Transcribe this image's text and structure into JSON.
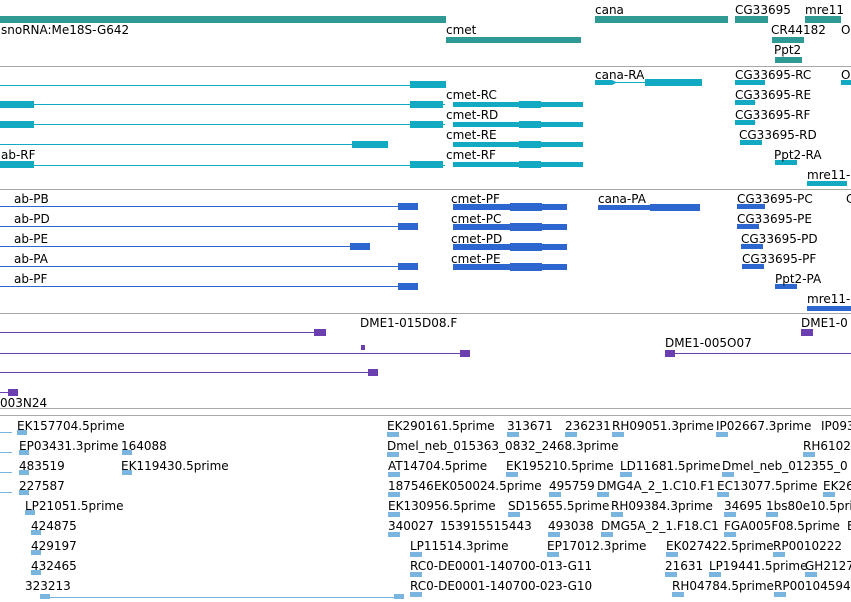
{
  "colors": {
    "gene": "#2f9a93",
    "flybase_transcript": "#12a9c3",
    "flybase_protein": "#2e66cf",
    "est": "#6b3fb0",
    "clone": "#7ab5e0",
    "separator": "#a8a8a8"
  },
  "tracks": [
    {
      "name": "genes",
      "color_key": "gene",
      "features": [
        {
          "label": "snoRNA:Me18S-G642"
        },
        {
          "label": "cmet"
        },
        {
          "label": "cana"
        },
        {
          "label": "CG33695"
        },
        {
          "label": "CR44182"
        },
        {
          "label": "Ppt2"
        },
        {
          "label": "mre11"
        },
        {
          "label": "O"
        }
      ]
    },
    {
      "name": "transcripts",
      "color_key": "flybase_transcript",
      "features": [
        {
          "label": "cmet-RC"
        },
        {
          "label": "cmet-RD"
        },
        {
          "label": "cmet-RE"
        },
        {
          "label": "cmet-RF"
        },
        {
          "label": "ab-RF"
        },
        {
          "label": "cana-RA"
        },
        {
          "label": "CG33695-RC"
        },
        {
          "label": "CG33695-RE"
        },
        {
          "label": "CG33695-RF"
        },
        {
          "label": "CG33695-RD"
        },
        {
          "label": "Ppt2-RA"
        },
        {
          "label": "mre11-"
        },
        {
          "label": "O"
        }
      ]
    },
    {
      "name": "proteins",
      "color_key": "flybase_protein",
      "features": [
        {
          "label": "ab-PB"
        },
        {
          "label": "ab-PD"
        },
        {
          "label": "ab-PE"
        },
        {
          "label": "ab-PA"
        },
        {
          "label": "ab-PF"
        },
        {
          "label": "cmet-PF"
        },
        {
          "label": "cmet-PC"
        },
        {
          "label": "cmet-PD"
        },
        {
          "label": "cmet-PE"
        },
        {
          "label": "cana-PA"
        },
        {
          "label": "CG33695-PC"
        },
        {
          "label": "CG33695-PE"
        },
        {
          "label": "CG33695-PD"
        },
        {
          "label": "CG33695-PF"
        },
        {
          "label": "Ppt2-PA"
        },
        {
          "label": "mre11-"
        },
        {
          "label": "C"
        }
      ]
    },
    {
      "name": "est",
      "color_key": "est",
      "features": [
        {
          "label": "DME1-015D08.F"
        },
        {
          "label": "DME1-005O07"
        },
        {
          "label": "DME1-0"
        },
        {
          "label": "003N24"
        }
      ]
    },
    {
      "name": "clones",
      "color_key": "clone",
      "features": [
        {
          "label": "EK157704.5prime"
        },
        {
          "label": "EP03431.3prime"
        },
        {
          "label": "164088"
        },
        {
          "label": "483519"
        },
        {
          "label": "EK119430.5prime"
        },
        {
          "label": "227587"
        },
        {
          "label": "LP21051.5prime"
        },
        {
          "label": "424875"
        },
        {
          "label": "429197"
        },
        {
          "label": "432465"
        },
        {
          "label": "323213"
        },
        {
          "label": "EK290161.5prime"
        },
        {
          "label": "313671"
        },
        {
          "label": "236231"
        },
        {
          "label": "RH09051.3prime"
        },
        {
          "label": "IP02667.3prime"
        },
        {
          "label": "IP093"
        },
        {
          "label": "Dmel_neb_015363_0832_2468.3prime"
        },
        {
          "label": "RH6102"
        },
        {
          "label": "AT14704.5prime"
        },
        {
          "label": "EK195210.5prime"
        },
        {
          "label": "LD11681.5prime"
        },
        {
          "label": "Dmel_neb_012355_0"
        },
        {
          "label": "187546"
        },
        {
          "label": "EK050024.5prime"
        },
        {
          "label": "495759"
        },
        {
          "label": "DMG4A_2_1.C10.F1"
        },
        {
          "label": "EC13077.5prime"
        },
        {
          "label": "EK26"
        },
        {
          "label": "EK130956.5prime"
        },
        {
          "label": "SD15655.5prime"
        },
        {
          "label": "RH09384.3prime"
        },
        {
          "label": "34695"
        },
        {
          "label": "1bs80e10.5prime"
        },
        {
          "label": "340027"
        },
        {
          "label": "153915"
        },
        {
          "label": "515443"
        },
        {
          "label": "493038"
        },
        {
          "label": "DMG5A_2_1.F18.C1"
        },
        {
          "label": "FGA005F08.5prime"
        },
        {
          "label": "B"
        },
        {
          "label": "LP11514.3prime"
        },
        {
          "label": "EP17012.3prime"
        },
        {
          "label": "EK027422.5prime"
        },
        {
          "label": "RP0010222"
        },
        {
          "label": "RC0-DE0001-140700-013-G11"
        },
        {
          "label": "21631"
        },
        {
          "label": "LP19441.5prime"
        },
        {
          "label": "GH2127"
        },
        {
          "label": "RC0-DE0001-140700-023-G10"
        },
        {
          "label": "RH04784.5prime"
        },
        {
          "label": "RP00104594"
        }
      ]
    }
  ]
}
